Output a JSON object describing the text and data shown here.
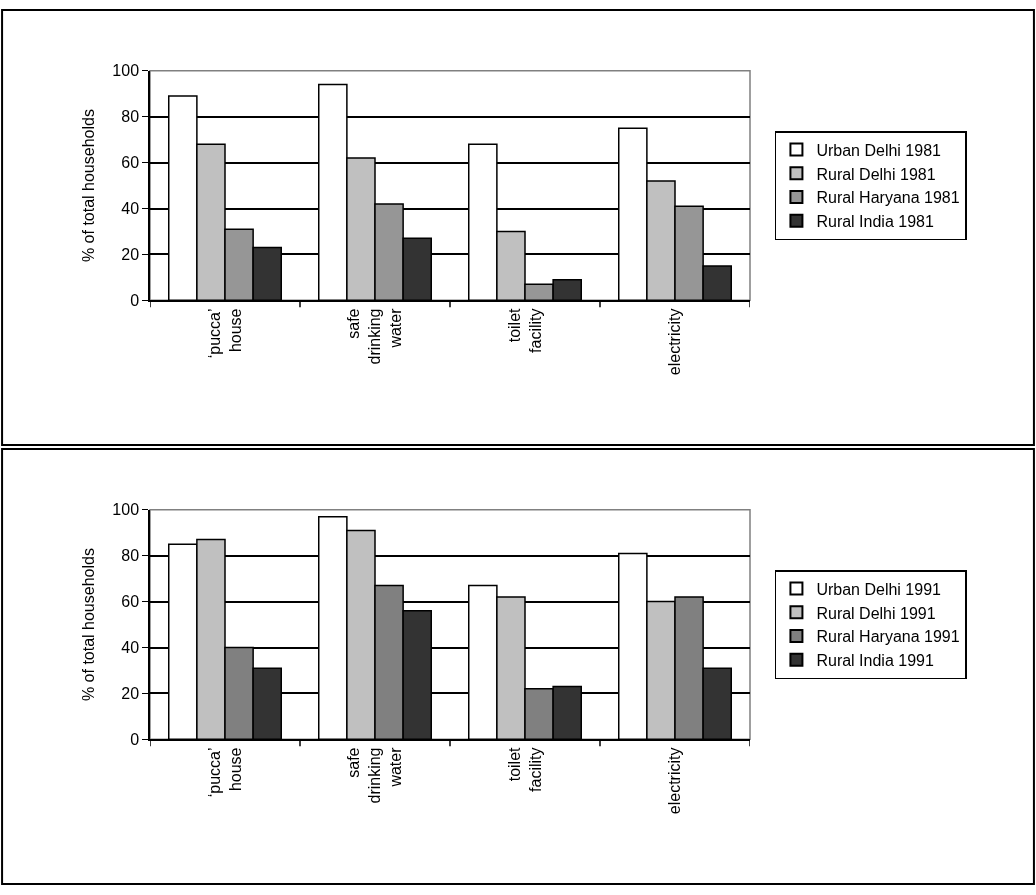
{
  "chart_data": [
    {
      "type": "bar",
      "ylabel": "% of total households",
      "categories": [
        "‘pucca’\nhouse",
        "safe\ndrinking\nwater",
        "toilet\nfacility",
        "electricity"
      ],
      "ylim": [
        0,
        100
      ],
      "yticks": [
        0,
        20,
        40,
        60,
        80,
        100
      ],
      "grid": "y",
      "legend": "right",
      "series": [
        {
          "name": "Urban Delhi 1981",
          "color": "#ffffff",
          "values": [
            89,
            94,
            68,
            75
          ]
        },
        {
          "name": "Rural Delhi 1981",
          "color": "#c0c0c0",
          "values": [
            68,
            62,
            30,
            52
          ]
        },
        {
          "name": "Rural Haryana 1981",
          "color": "#969696",
          "values": [
            31,
            42,
            7,
            41
          ]
        },
        {
          "name": "Rural India 1981",
          "color": "#333333",
          "values": [
            23,
            27,
            9,
            15
          ]
        }
      ]
    },
    {
      "type": "bar",
      "ylabel": "% of total households",
      "categories": [
        "‘pucca’\nhouse",
        "safe\ndrinking\nwater",
        "toilet\nfacility",
        "electricity"
      ],
      "ylim": [
        0,
        100
      ],
      "yticks": [
        0,
        20,
        40,
        60,
        80,
        100
      ],
      "grid": "y",
      "legend": "right",
      "series": [
        {
          "name": "Urban Delhi 1991",
          "color": "#ffffff",
          "values": [
            85,
            97,
            67,
            81
          ]
        },
        {
          "name": "Rural Delhi 1991",
          "color": "#c0c0c0",
          "values": [
            87,
            91,
            62,
            60
          ]
        },
        {
          "name": "Rural Haryana 1991",
          "color": "#808080",
          "values": [
            40,
            67,
            22,
            62
          ]
        },
        {
          "name": "Rural India 1991",
          "color": "#333333",
          "values": [
            31,
            56,
            23,
            31
          ]
        }
      ]
    }
  ]
}
